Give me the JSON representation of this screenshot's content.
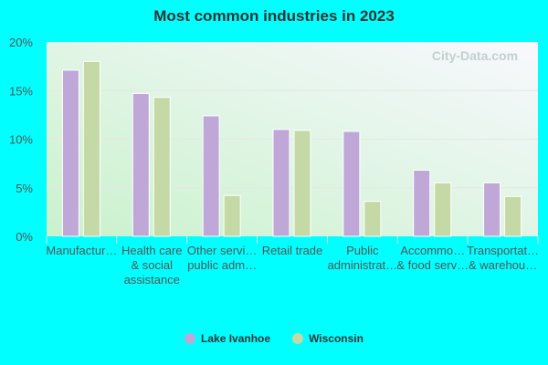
{
  "chart_data": {
    "type": "bar",
    "title": "Most common industries in 2023",
    "categories": [
      [
        "Manufactur…"
      ],
      [
        "Health care",
        "& social",
        "assistance"
      ],
      [
        "Other servi…",
        "public adm…"
      ],
      [
        "Retail trade"
      ],
      [
        "Public",
        "administrat…"
      ],
      [
        "Accommo…",
        "& food serv…"
      ],
      [
        "Transportat…",
        "& warehou…"
      ]
    ],
    "series": [
      {
        "name": "Lake Ivanhoe",
        "color": "#bfa8d8",
        "values": [
          17.1,
          14.7,
          12.4,
          11.0,
          10.8,
          6.8,
          5.5
        ]
      },
      {
        "name": "Wisconsin",
        "color": "#c4d9a6",
        "values": [
          18.0,
          14.3,
          4.2,
          10.9,
          3.6,
          5.5,
          4.1
        ]
      }
    ],
    "ylim": [
      0,
      20
    ],
    "yticks": [
      "0%",
      "5%",
      "10%",
      "15%",
      "20%"
    ],
    "grid": true,
    "legend_placement": "bottom",
    "watermark": "City-Data.com"
  }
}
